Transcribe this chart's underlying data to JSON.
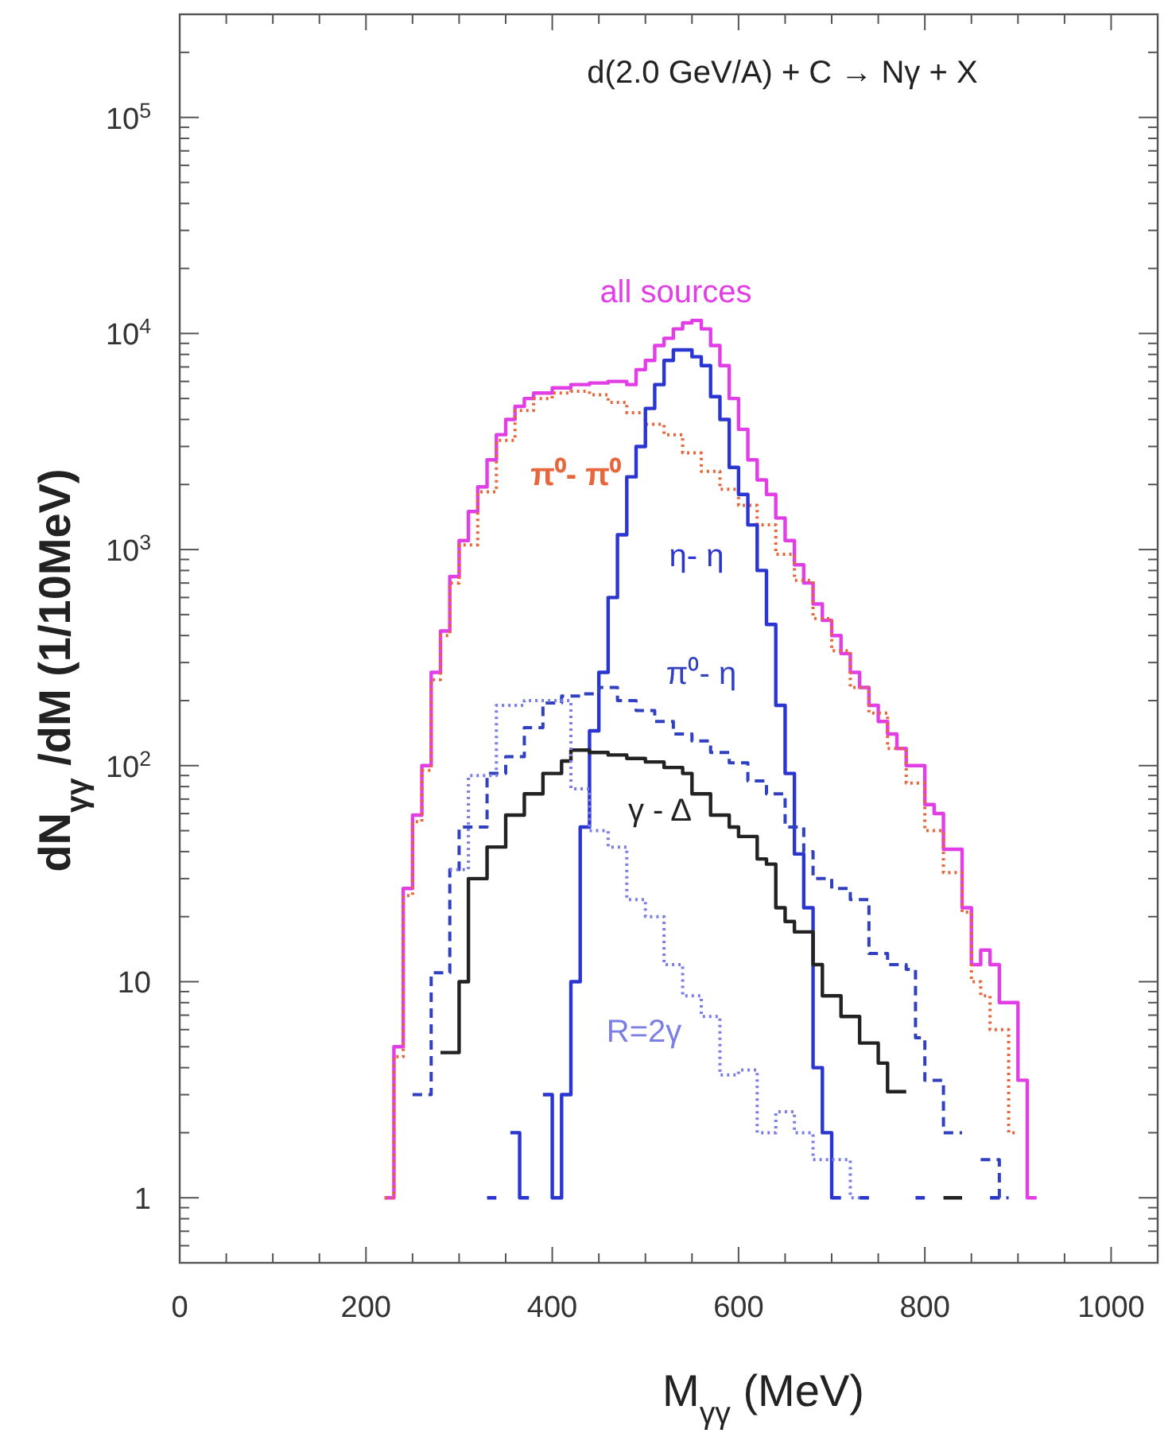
{
  "chart_data": {
    "type": "step",
    "title": "d(2.0 GeV/A) + C → Nγ + X",
    "xlabel": "M$_{γγ}$ (MeV)",
    "ylabel": "dN$_{γγ}$/dM (1/10MeV)",
    "log": true,
    "xlim": [
      0,
      1050
    ],
    "ylim": [
      0.5,
      300000
    ],
    "xticks": [
      0,
      {
        "value": 50,
        "label": null
      },
      {
        "value": 100,
        "label": null
      },
      {
        "value": 150,
        "label": null
      },
      200,
      {
        "value": 250,
        "label": null
      },
      {
        "value": 300,
        "label": null
      },
      {
        "value": 350,
        "label": null
      },
      400,
      {
        "value": 450,
        "label": null
      },
      {
        "value": 500,
        "label": null
      },
      {
        "value": 550,
        "label": null
      },
      600,
      {
        "value": 650,
        "label": null
      },
      {
        "value": 700,
        "label": null
      },
      {
        "value": 750,
        "label": null
      },
      800,
      {
        "value": 850,
        "label": null
      },
      {
        "value": 900,
        "label": null
      },
      {
        "value": 950,
        "label": null
      },
      1000
    ],
    "yticks": [
      {
        "value": 0.6,
        "label": null
      },
      {
        "value": 0.7,
        "label": null
      },
      {
        "value": 0.8,
        "label": null
      },
      {
        "value": 0.9,
        "label": null
      },
      1,
      {
        "value": 2,
        "label": null
      },
      {
        "value": 3,
        "label": null
      },
      {
        "value": 4,
        "label": null
      },
      {
        "value": 5,
        "label": null
      },
      {
        "value": 6,
        "label": null
      },
      {
        "value": 7,
        "label": null
      },
      {
        "value": 8,
        "label": null
      },
      {
        "value": 9,
        "label": null
      },
      10,
      {
        "value": 20,
        "label": null
      },
      {
        "value": 30,
        "label": null
      },
      {
        "value": 40,
        "label": null
      },
      {
        "value": 50,
        "label": null
      },
      {
        "value": 60,
        "label": null
      },
      {
        "value": 70,
        "label": null
      },
      {
        "value": 80,
        "label": null
      },
      {
        "value": 90,
        "label": null
      },
      {
        "value": 100,
        "label": "10$^{2}$"
      },
      {
        "value": 200,
        "label": null
      },
      {
        "value": 300,
        "label": null
      },
      {
        "value": 400,
        "label": null
      },
      {
        "value": 500,
        "label": null
      },
      {
        "value": 600,
        "label": null
      },
      {
        "value": 700,
        "label": null
      },
      {
        "value": 800,
        "label": null
      },
      {
        "value": 900,
        "label": null
      },
      {
        "value": 1000,
        "label": "10$^{3}$"
      },
      {
        "value": 2000,
        "label": null
      },
      {
        "value": 3000,
        "label": null
      },
      {
        "value": 4000,
        "label": null
      },
      {
        "value": 5000,
        "label": null
      },
      {
        "value": 6000,
        "label": null
      },
      {
        "value": 7000,
        "label": null
      },
      {
        "value": 8000,
        "label": null
      },
      {
        "value": 9000,
        "label": null
      },
      {
        "value": 10000,
        "label": "10$^{4}$"
      },
      {
        "value": 20000,
        "label": null
      },
      {
        "value": 30000,
        "label": null
      },
      {
        "value": 40000,
        "label": null
      },
      {
        "value": 50000,
        "label": null
      },
      {
        "value": 60000,
        "label": null
      },
      {
        "value": 70000,
        "label": null
      },
      {
        "value": 80000,
        "label": null
      },
      {
        "value": 90000,
        "label": null
      },
      {
        "value": 100000,
        "label": "10$^{5}$"
      },
      {
        "value": 200000,
        "label": null
      }
    ],
    "series": [
      {
        "name": "all sources",
        "color": "#e23ee6",
        "line_style": "solid",
        "x": [
          220,
          230,
          240,
          250,
          260,
          270,
          280,
          290,
          300,
          310,
          320,
          330,
          340,
          350,
          360,
          370,
          380,
          400,
          420,
          440,
          460,
          480,
          490,
          500,
          510,
          520,
          530,
          540,
          550,
          560,
          570,
          580,
          590,
          600,
          610,
          620,
          630,
          640,
          650,
          660,
          670,
          680,
          690,
          700,
          710,
          720,
          730,
          740,
          750,
          760,
          770,
          780,
          790,
          800,
          810,
          820,
          830,
          840,
          850,
          860,
          870,
          880,
          890,
          900,
          910,
          920
        ],
        "values": [
          1,
          5,
          27,
          59,
          100,
          270,
          420,
          750,
          1100,
          1500,
          1950,
          2600,
          3400,
          4000,
          4600,
          5000,
          5300,
          5600,
          5800,
          5900,
          6000,
          5800,
          6800,
          7500,
          8800,
          9500,
          10500,
          11200,
          11500,
          10500,
          8800,
          7100,
          5000,
          3600,
          2600,
          2100,
          1800,
          1400,
          1100,
          850,
          700,
          560,
          470,
          400,
          330,
          270,
          230,
          190,
          160,
          140,
          120,
          100,
          100,
          66,
          60,
          41,
          41,
          22,
          12,
          14,
          12,
          8,
          8,
          3.5,
          1,
          1
        ]
      },
      {
        "name": "π⁰- π⁰",
        "color": "#e8663c",
        "line_style": "dotted",
        "x": [
          220,
          230,
          240,
          250,
          260,
          270,
          280,
          290,
          300,
          320,
          340,
          360,
          380,
          400,
          420,
          440,
          460,
          480,
          500,
          520,
          540,
          560,
          580,
          600,
          620,
          640,
          660,
          680,
          700,
          720,
          740,
          760,
          780,
          800,
          820,
          840,
          850,
          860,
          870,
          890,
          900
        ],
        "values": [
          1,
          4.5,
          25,
          55,
          95,
          250,
          400,
          700,
          1050,
          1850,
          3200,
          4400,
          5000,
          5300,
          5400,
          5200,
          4800,
          4300,
          3800,
          3400,
          2800,
          2300,
          1900,
          1600,
          1300,
          950,
          720,
          480,
          340,
          230,
          175,
          120,
          83,
          50,
          32,
          21,
          10,
          8.6,
          6,
          2,
          2
        ]
      },
      {
        "name": "η- η",
        "color": "#2b35d0",
        "line_style": "solid",
        "x": [
          330,
          340,
          345,
          355,
          365,
          375,
          380,
          390,
          400,
          410,
          420,
          430,
          440,
          450,
          460,
          470,
          480,
          490,
          500,
          510,
          520,
          530,
          540,
          550,
          560,
          570,
          580,
          590,
          600,
          610,
          620,
          630,
          640,
          650,
          660,
          670,
          680,
          690,
          700,
          710,
          715,
          730,
          740,
          745,
          790,
          800,
          805,
          870,
          880
        ],
        "values": [
          1,
          1,
          null,
          2,
          1,
          1,
          null,
          3,
          1,
          3,
          10,
          52,
          145,
          270,
          600,
          1170,
          2170,
          3000,
          4500,
          5800,
          7500,
          8400,
          8400,
          7800,
          7100,
          5100,
          4000,
          2400,
          1800,
          1300,
          800,
          450,
          190,
          92,
          39,
          22,
          4,
          2,
          1,
          1,
          null,
          1,
          1,
          null,
          1,
          1,
          null,
          1,
          1
        ]
      },
      {
        "name": "π⁰- η",
        "color": "#3140c0",
        "line_style": "dashed",
        "x": [
          250,
          270,
          290,
          300,
          320,
          330,
          350,
          370,
          390,
          410,
          430,
          450,
          470,
          490,
          510,
          530,
          550,
          570,
          590,
          610,
          630,
          650,
          670,
          680,
          700,
          720,
          740,
          760,
          780,
          790,
          800,
          820,
          840,
          850,
          860,
          880,
          890
        ],
        "values": [
          3,
          11,
          33,
          52,
          52,
          92,
          110,
          150,
          195,
          210,
          215,
          230,
          200,
          180,
          160,
          140,
          130,
          115,
          103,
          85,
          74,
          52,
          40,
          30,
          27,
          24,
          13.5,
          12,
          11.4,
          5.5,
          3.5,
          2,
          2,
          null,
          1.5,
          1,
          1
        ]
      },
      {
        "name": "γ - Δ",
        "color": "#222222",
        "line_style": "solid",
        "x": [
          280,
          300,
          310,
          330,
          350,
          370,
          390,
          410,
          420,
          440,
          460,
          480,
          500,
          520,
          540,
          550,
          570,
          590,
          600,
          620,
          630,
          640,
          650,
          660,
          680,
          690,
          710,
          730,
          750,
          760,
          780,
          800,
          820,
          840
        ],
        "values": [
          4.7,
          10,
          30,
          42,
          59,
          74,
          92,
          105,
          118,
          115,
          112,
          108,
          104,
          98,
          92,
          74,
          59,
          52,
          47,
          37,
          35,
          22,
          19,
          17,
          12,
          8.6,
          6.9,
          5.2,
          4.2,
          3.1,
          3.1,
          null,
          1,
          1
        ]
      },
      {
        "name": "R=2γ",
        "color": "#7a7ee6",
        "line_style": "dotted",
        "x": [
          290,
          310,
          340,
          370,
          420,
          440,
          460,
          480,
          500,
          520,
          540,
          560,
          580,
          600,
          620,
          640,
          660,
          680,
          720,
          730
        ],
        "values": [
          33,
          90,
          190,
          200,
          78,
          50,
          42,
          24,
          20,
          12,
          8.6,
          6.9,
          3.7,
          3.9,
          2,
          2.5,
          2,
          1.5,
          1,
          1
        ]
      }
    ]
  }
}
